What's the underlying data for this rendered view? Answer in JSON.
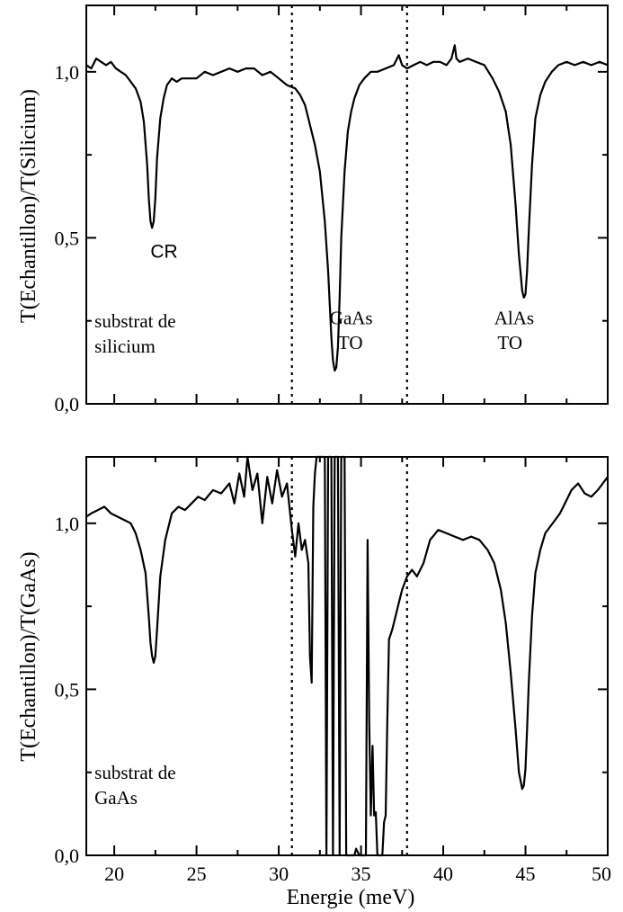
{
  "chart_data": [
    {
      "type": "line",
      "title": "",
      "xlabel": "Energie (meV)",
      "ylabel": "T(Echantillon)/T(Silicium)",
      "xlim": [
        18.3,
        50
      ],
      "ylim": [
        0,
        1.2
      ],
      "xticks": [
        20,
        25,
        30,
        35,
        40,
        45,
        50
      ],
      "yticks": [
        0,
        0.5,
        1.0
      ],
      "ytick_labels": [
        "0,0",
        "0,5",
        "1,0"
      ],
      "grid": false,
      "vlines": [
        30.8,
        37.8
      ],
      "annotations": [
        {
          "text": "CR",
          "x": 22.2,
          "y": 0.44
        },
        {
          "text": "substrat de",
          "x": 18.8,
          "y": 0.23
        },
        {
          "text": "silicium",
          "x": 18.8,
          "y": 0.155
        },
        {
          "text": "GaAs",
          "x": 33.1,
          "y": 0.24
        },
        {
          "text": "TO",
          "x": 33.6,
          "y": 0.165
        },
        {
          "text": "AlAs",
          "x": 43.1,
          "y": 0.24
        },
        {
          "text": "TO",
          "x": 43.3,
          "y": 0.165
        }
      ],
      "series": [
        {
          "x": [
            18.3,
            18.6,
            18.9,
            19.2,
            19.5,
            19.8,
            20.1,
            20.4,
            20.7,
            21.0,
            21.3,
            21.6,
            21.8,
            22.0,
            22.1,
            22.2,
            22.3,
            22.4,
            22.5,
            22.6,
            22.8,
            23.0,
            23.2,
            23.5,
            23.8,
            24.1,
            24.5,
            25.0,
            25.5,
            26.0,
            26.5,
            27.0,
            27.5,
            28.0,
            28.5,
            29.0,
            29.5,
            30.0,
            30.5,
            31.0,
            31.3,
            31.6,
            31.9,
            32.2,
            32.5,
            32.8,
            33.0,
            33.1,
            33.2,
            33.3,
            33.4,
            33.5,
            33.6,
            33.7,
            33.8,
            34.0,
            34.2,
            34.4,
            34.6,
            34.9,
            35.2,
            35.6,
            36.0,
            36.5,
            37.0,
            37.3,
            37.5,
            37.8,
            38.2,
            38.6,
            39.0,
            39.4,
            39.8,
            40.2,
            40.5,
            40.7,
            40.8,
            41.0,
            41.5,
            42.0,
            42.5,
            43.0,
            43.4,
            43.8,
            44.1,
            44.4,
            44.6,
            44.8,
            44.9,
            45.0,
            45.1,
            45.2,
            45.4,
            45.6,
            45.9,
            46.2,
            46.6,
            47.0,
            47.5,
            48.0,
            48.5,
            49.0,
            49.5,
            50.0
          ],
          "values": [
            1.02,
            1.01,
            1.04,
            1.03,
            1.02,
            1.03,
            1.01,
            1.0,
            0.99,
            0.97,
            0.95,
            0.91,
            0.85,
            0.72,
            0.62,
            0.55,
            0.53,
            0.55,
            0.62,
            0.74,
            0.86,
            0.92,
            0.96,
            0.98,
            0.97,
            0.98,
            0.98,
            0.98,
            1.0,
            0.99,
            1.0,
            1.01,
            1.0,
            1.01,
            1.01,
            0.99,
            1.0,
            0.98,
            0.96,
            0.95,
            0.93,
            0.9,
            0.84,
            0.78,
            0.7,
            0.55,
            0.4,
            0.3,
            0.2,
            0.13,
            0.1,
            0.11,
            0.17,
            0.32,
            0.5,
            0.7,
            0.82,
            0.88,
            0.92,
            0.96,
            0.98,
            1.0,
            1.0,
            1.01,
            1.02,
            1.05,
            1.02,
            1.01,
            1.02,
            1.03,
            1.02,
            1.03,
            1.03,
            1.02,
            1.04,
            1.08,
            1.04,
            1.03,
            1.04,
            1.03,
            1.02,
            0.98,
            0.94,
            0.88,
            0.78,
            0.6,
            0.45,
            0.34,
            0.32,
            0.33,
            0.4,
            0.52,
            0.72,
            0.86,
            0.93,
            0.97,
            1.0,
            1.02,
            1.03,
            1.02,
            1.03,
            1.02,
            1.03,
            1.02
          ]
        }
      ]
    },
    {
      "type": "line",
      "title": "",
      "xlabel": "Energie (meV)",
      "ylabel": "T(Echantillon)/T(GaAs)",
      "xlim": [
        18.3,
        50
      ],
      "ylim": [
        0,
        1.2
      ],
      "xticks": [
        20,
        25,
        30,
        35,
        40,
        45,
        50
      ],
      "xtick_labels": [
        "20",
        "25",
        "30",
        "35",
        "40",
        "45",
        "50"
      ],
      "yticks": [
        0,
        0.5,
        1.0
      ],
      "ytick_labels": [
        "0,0",
        "0,5",
        "1,0"
      ],
      "grid": false,
      "vlines": [
        30.8,
        37.8
      ],
      "annotations": [
        {
          "text": "substrat de",
          "x": 18.8,
          "y": 0.23
        },
        {
          "text": "GaAs",
          "x": 18.8,
          "y": 0.155
        }
      ],
      "series": [
        {
          "x": [
            18.3,
            18.6,
            19.0,
            19.4,
            19.8,
            20.2,
            20.6,
            21.0,
            21.3,
            21.6,
            21.9,
            22.1,
            22.2,
            22.3,
            22.4,
            22.5,
            22.6,
            22.8,
            23.1,
            23.5,
            23.9,
            24.3,
            24.7,
            25.1,
            25.5,
            26.0,
            26.5,
            27.0,
            27.3,
            27.6,
            27.9,
            28.1,
            28.4,
            28.7,
            29.0,
            29.3,
            29.6,
            29.9,
            30.2,
            30.5,
            30.8,
            31.0,
            31.2,
            31.4,
            31.6,
            31.8,
            31.9,
            32.0,
            32.1,
            32.2,
            32.3,
            32.5,
            32.8,
            32.9,
            33.0,
            33.1,
            33.2,
            33.3,
            33.4,
            33.5,
            33.6,
            33.7,
            33.8,
            33.9,
            34.0,
            34.1,
            34.3,
            34.5,
            34.6,
            34.7,
            34.9,
            35.1,
            35.3,
            35.4,
            35.5,
            35.6,
            35.7,
            35.8,
            35.9,
            36.0,
            36.1,
            36.2,
            36.3,
            36.4,
            36.5,
            36.6,
            36.7,
            36.9,
            37.1,
            37.3,
            37.5,
            37.8,
            38.1,
            38.4,
            38.8,
            39.2,
            39.7,
            40.2,
            40.7,
            41.2,
            41.7,
            42.2,
            42.7,
            43.1,
            43.5,
            43.8,
            44.1,
            44.4,
            44.6,
            44.8,
            44.9,
            45.0,
            45.1,
            45.2,
            45.4,
            45.6,
            45.9,
            46.2,
            46.5,
            46.8,
            47.1,
            47.4,
            47.8,
            48.2,
            48.6,
            49.0,
            49.4,
            49.7,
            50.0
          ],
          "values": [
            1.02,
            1.03,
            1.04,
            1.05,
            1.03,
            1.02,
            1.01,
            1.0,
            0.97,
            0.92,
            0.85,
            0.72,
            0.64,
            0.6,
            0.58,
            0.6,
            0.68,
            0.84,
            0.95,
            1.03,
            1.05,
            1.04,
            1.06,
            1.08,
            1.07,
            1.1,
            1.09,
            1.12,
            1.06,
            1.15,
            1.08,
            1.2,
            1.1,
            1.15,
            1.0,
            1.14,
            1.06,
            1.16,
            1.08,
            1.12,
            0.98,
            0.9,
            1.0,
            0.92,
            0.95,
            0.88,
            0.6,
            0.52,
            1.05,
            1.15,
            1.2,
            1.2,
            1.2,
            0.0,
            1.2,
            1.2,
            1.2,
            0.0,
            1.2,
            1.2,
            1.2,
            0.0,
            1.2,
            1.2,
            1.2,
            0.0,
            0.0,
            0.0,
            0.0,
            0.02,
            0.0,
            0.0,
            0.0,
            0.95,
            0.4,
            0.12,
            0.33,
            0.12,
            0.13,
            0.0,
            0.0,
            0.0,
            0.0,
            0.1,
            0.12,
            0.4,
            0.65,
            0.68,
            0.72,
            0.76,
            0.8,
            0.84,
            0.86,
            0.84,
            0.88,
            0.95,
            0.98,
            0.97,
            0.96,
            0.95,
            0.96,
            0.95,
            0.92,
            0.88,
            0.8,
            0.7,
            0.55,
            0.38,
            0.25,
            0.2,
            0.21,
            0.26,
            0.38,
            0.52,
            0.72,
            0.85,
            0.92,
            0.97,
            0.99,
            1.01,
            1.03,
            1.06,
            1.1,
            1.12,
            1.09,
            1.08,
            1.1,
            1.12,
            1.14
          ]
        }
      ]
    }
  ]
}
